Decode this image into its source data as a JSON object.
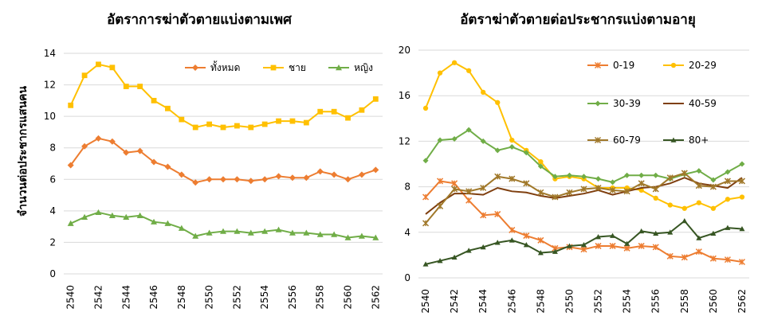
{
  "chart_data": [
    {
      "type": "line",
      "title": "อัตราการฆ่าตัวตายแบ่งตามเพศ",
      "ylabel": "จำนวนต่อประชากรแสนคน",
      "xlabel": "",
      "ylim": [
        0,
        14
      ],
      "yticks": [
        0,
        2,
        4,
        6,
        8,
        10,
        12,
        14
      ],
      "xticks": [
        2540,
        2542,
        2544,
        2546,
        2548,
        2550,
        2552,
        2554,
        2556,
        2558,
        2560,
        2562
      ],
      "legend_position": "top-right",
      "x": [
        2540,
        2541,
        2542,
        2543,
        2544,
        2545,
        2546,
        2547,
        2548,
        2549,
        2550,
        2551,
        2552,
        2553,
        2554,
        2555,
        2556,
        2557,
        2558,
        2559,
        2560,
        2561,
        2562
      ],
      "series": [
        {
          "name": "ทั้งหมด",
          "color": "#ed7d31",
          "marker": "diamond",
          "values": [
            6.9,
            8.1,
            8.6,
            8.4,
            7.7,
            7.8,
            7.1,
            6.8,
            6.3,
            5.8,
            6.0,
            6.0,
            6.0,
            5.9,
            6.0,
            6.2,
            6.1,
            6.1,
            6.5,
            6.3,
            6.0,
            6.3,
            6.6
          ]
        },
        {
          "name": "ชาย",
          "color": "#ffc000",
          "marker": "square",
          "values": [
            10.7,
            12.6,
            13.3,
            13.1,
            11.9,
            11.9,
            11.0,
            10.5,
            9.8,
            9.3,
            9.5,
            9.3,
            9.4,
            9.3,
            9.5,
            9.7,
            9.7,
            9.6,
            10.3,
            10.3,
            9.9,
            10.4,
            11.1
          ]
        },
        {
          "name": "หญิง",
          "color": "#70ad47",
          "marker": "triangle",
          "values": [
            3.2,
            3.6,
            3.9,
            3.7,
            3.6,
            3.7,
            3.3,
            3.2,
            2.9,
            2.4,
            2.6,
            2.7,
            2.7,
            2.6,
            2.7,
            2.8,
            2.6,
            2.6,
            2.5,
            2.5,
            2.3,
            2.4,
            2.3
          ]
        }
      ]
    },
    {
      "type": "line",
      "title": "อัตราฆ่าตัวตายต่อประชากรแบ่งตามอายุ",
      "xlabel": "",
      "ylabel": "",
      "ylim": [
        0,
        20
      ],
      "yticks": [
        0,
        4,
        8,
        12,
        16,
        20
      ],
      "xticks": [
        2540,
        2542,
        2544,
        2546,
        2548,
        2550,
        2552,
        2554,
        2556,
        2558,
        2560,
        2562
      ],
      "legend_position": "top-right",
      "x": [
        2540,
        2541,
        2542,
        2543,
        2544,
        2545,
        2546,
        2547,
        2548,
        2549,
        2550,
        2551,
        2552,
        2553,
        2554,
        2555,
        2556,
        2557,
        2558,
        2559,
        2560,
        2561,
        2562
      ],
      "series": [
        {
          "name": "0-19",
          "color": "#ed7d31",
          "marker": "star",
          "values": [
            7.1,
            8.5,
            8.3,
            6.8,
            5.5,
            5.6,
            4.2,
            3.7,
            3.3,
            2.6,
            2.7,
            2.5,
            2.8,
            2.8,
            2.6,
            2.8,
            2.7,
            1.9,
            1.8,
            2.3,
            1.7,
            1.6,
            1.4
          ]
        },
        {
          "name": "20-29",
          "color": "#ffc000",
          "marker": "circle",
          "values": [
            14.9,
            18.0,
            18.9,
            18.2,
            16.3,
            15.4,
            12.1,
            11.2,
            10.2,
            8.7,
            8.9,
            8.7,
            7.9,
            7.9,
            7.9,
            7.7,
            7.0,
            6.4,
            6.1,
            6.6,
            6.1,
            6.9,
            7.1
          ]
        },
        {
          "name": "30-39",
          "color": "#70ad47",
          "marker": "diamond",
          "values": [
            10.3,
            12.1,
            12.2,
            13.0,
            12.0,
            11.2,
            11.5,
            11.0,
            9.8,
            8.9,
            9.0,
            8.9,
            8.7,
            8.4,
            9.0,
            9.0,
            9.0,
            8.7,
            9.1,
            9.4,
            8.6,
            9.3,
            10.0
          ]
        },
        {
          "name": "40-59",
          "color": "#7f3f0f",
          "marker": "none",
          "values": [
            5.6,
            6.6,
            7.4,
            7.4,
            7.3,
            7.9,
            7.6,
            7.5,
            7.2,
            7.0,
            7.2,
            7.4,
            7.7,
            7.3,
            7.6,
            7.9,
            8.0,
            8.3,
            8.8,
            8.3,
            8.1,
            7.9,
            8.8
          ]
        },
        {
          "name": "60-79",
          "color": "#a0782a",
          "marker": "star",
          "values": [
            4.8,
            6.3,
            7.8,
            7.6,
            7.9,
            8.9,
            8.7,
            8.3,
            7.5,
            7.1,
            7.5,
            7.8,
            7.9,
            7.7,
            7.6,
            8.3,
            7.8,
            8.8,
            9.2,
            8.1,
            8.0,
            8.5,
            8.5
          ]
        },
        {
          "name": "80+",
          "color": "#375623",
          "marker": "triangle",
          "values": [
            1.2,
            1.5,
            1.8,
            2.4,
            2.7,
            3.1,
            3.3,
            2.9,
            2.2,
            2.3,
            2.8,
            2.9,
            3.6,
            3.7,
            3.0,
            4.1,
            3.9,
            4.0,
            5.0,
            3.5,
            3.9,
            4.4,
            4.3
          ]
        }
      ]
    }
  ]
}
